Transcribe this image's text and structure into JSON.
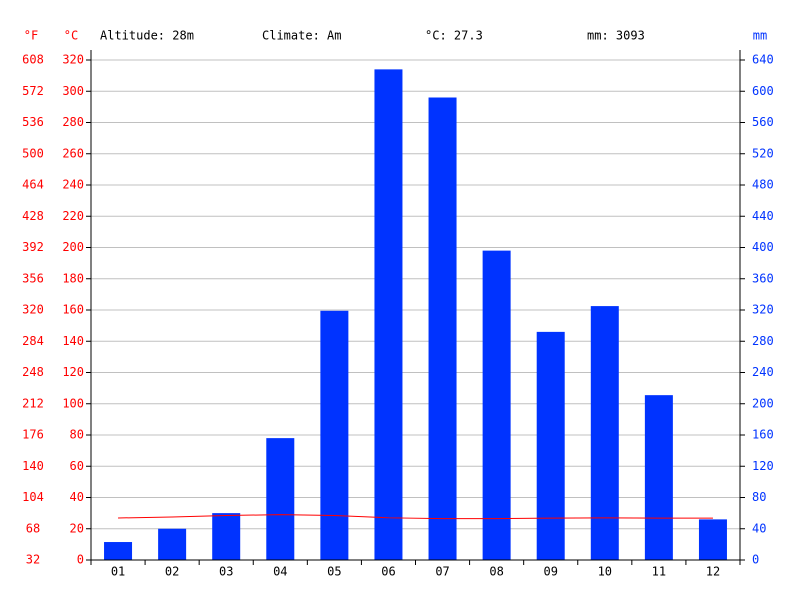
{
  "chart_data": {
    "type": "climate",
    "header": [
      "Altitude: 28m",
      "Climate: Am",
      "°C: 27.3",
      "mm: 3093"
    ],
    "y3_label": "°F",
    "y_label": "°C",
    "y2_label": "mm",
    "categories": [
      "01",
      "02",
      "03",
      "04",
      "05",
      "06",
      "07",
      "08",
      "09",
      "10",
      "11",
      "12"
    ],
    "series": [
      {
        "name": "mm",
        "type": "bar",
        "axis": "y2",
        "color": "#0033ff",
        "values": [
          23,
          40,
          60,
          156,
          319,
          628,
          592,
          396,
          292,
          325,
          211,
          52
        ]
      },
      {
        "name": "°C",
        "type": "line",
        "color": "#ff0000",
        "values": [
          26.9,
          27.5,
          28.5,
          29,
          28.5,
          27,
          26.5,
          26.5,
          26.8,
          27,
          26.8,
          26.8
        ]
      }
    ],
    "ylim": [
      0,
      320
    ],
    "yticks": [
      0,
      20,
      40,
      60,
      80,
      100,
      120,
      140,
      160,
      180,
      200,
      220,
      240,
      260,
      280,
      300,
      320
    ],
    "y3lim": [
      32,
      608
    ],
    "y3ticks": [
      32,
      68,
      104,
      140,
      176,
      212,
      248,
      284,
      320,
      356,
      392,
      428,
      464,
      500,
      536,
      572,
      608
    ],
    "y2lim": [
      0,
      640
    ],
    "y2ticks": [
      0,
      40,
      80,
      120,
      160,
      200,
      240,
      280,
      320,
      360,
      400,
      440,
      480,
      520,
      560,
      600,
      640
    ],
    "temp_axis_color": "#ff0000",
    "precip_axis_color": "#0033ff",
    "grid": true
  }
}
